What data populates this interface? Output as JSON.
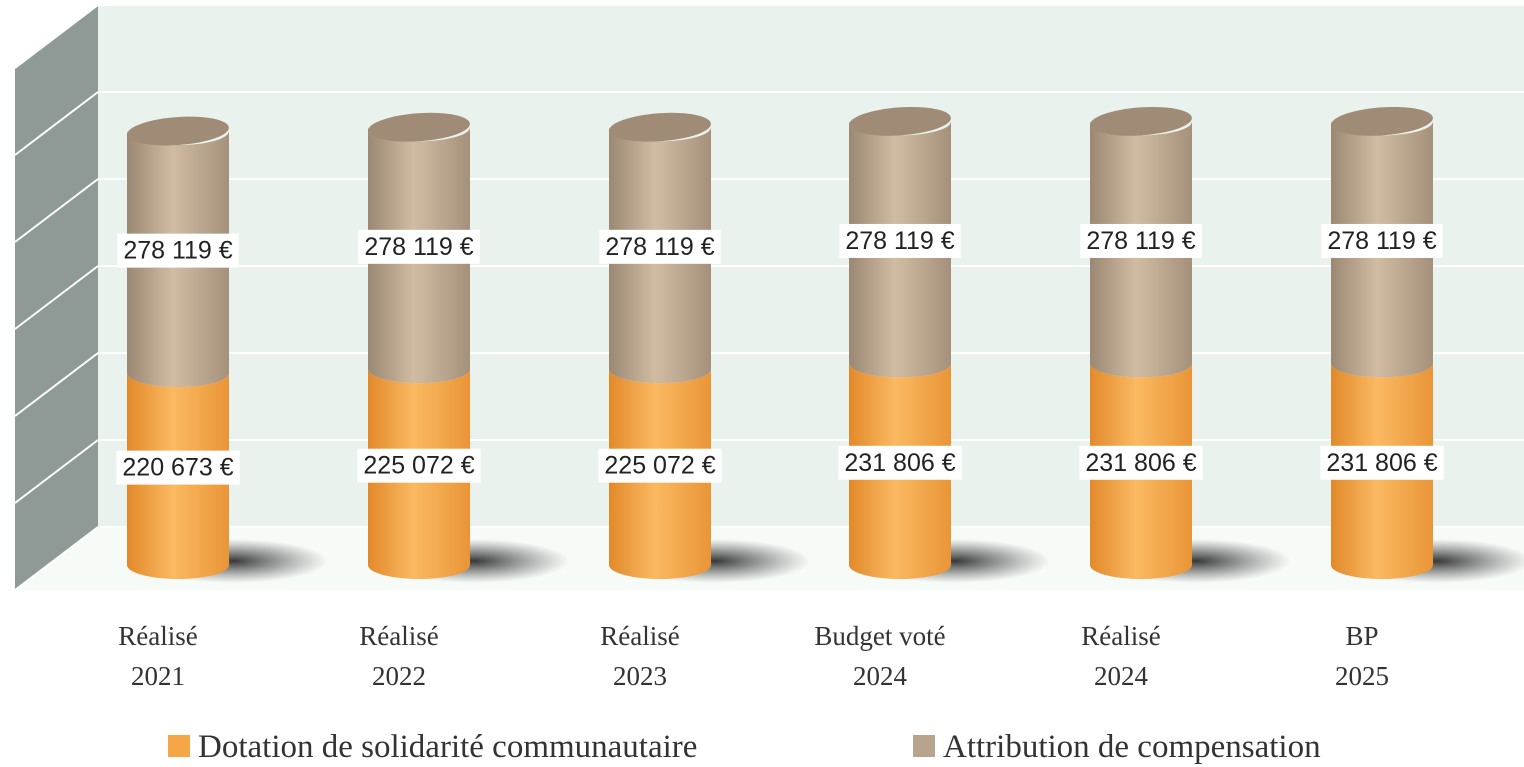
{
  "chart_data": {
    "type": "stacked_cylinder",
    "categories": [
      [
        "Réalisé",
        "2021"
      ],
      [
        "Réalisé",
        "2022"
      ],
      [
        "Réalisé",
        "2023"
      ],
      [
        "Budget voté",
        "2024"
      ],
      [
        "Réalisé",
        "2024"
      ],
      [
        "BP",
        "2025"
      ]
    ],
    "series": [
      {
        "name": "Dotation de solidarité communautaire",
        "color": "#f5a646",
        "values": [
          220673,
          225072,
          225072,
          231806,
          231806,
          231806
        ],
        "value_labels": [
          "220 673 €",
          "225 072 €",
          "225 072 €",
          "231 806 €",
          "231 806 €",
          "231 806 €"
        ]
      },
      {
        "name": "Attribution de compensation",
        "color": "#b8a48d",
        "values": [
          278119,
          278119,
          278119,
          278119,
          278119,
          278119
        ],
        "value_labels": [
          "278 119 €",
          "278 119 €",
          "278 119 €",
          "278 119 €",
          "278 119 €",
          "278 119 €"
        ]
      }
    ],
    "ylim": [
      0,
      600000
    ],
    "yticks": [
      0,
      100000,
      200000,
      300000,
      400000,
      500000,
      600000
    ],
    "grid": true
  }
}
